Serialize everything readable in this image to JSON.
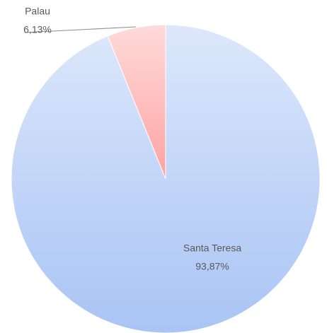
{
  "chart_data": {
    "type": "pie",
    "categories": [
      "Santa Teresa",
      "Palau"
    ],
    "values": [
      93.87,
      6.13
    ],
    "value_labels": [
      "93,87%",
      "6,13%"
    ],
    "colors": [
      "#a9c4f5",
      "#ffa3a3"
    ]
  }
}
